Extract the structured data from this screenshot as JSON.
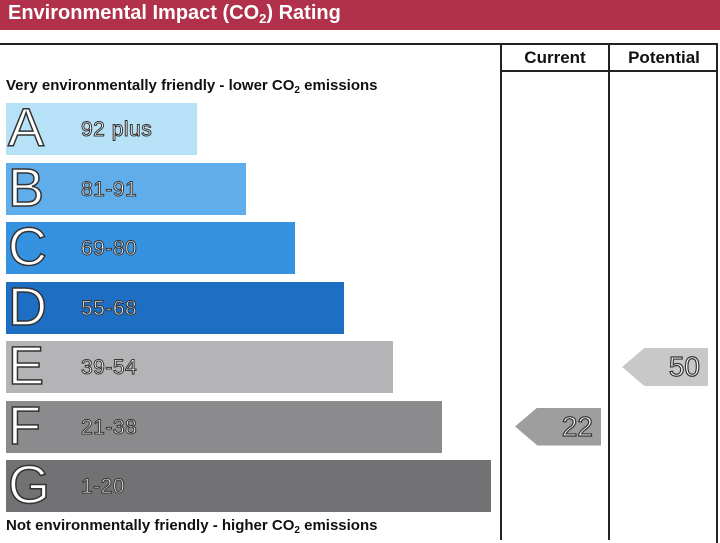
{
  "title_parts": [
    "Environmental Impact (CO",
    "2",
    ") Rating"
  ],
  "columns": {
    "current": "Current",
    "potential": "Potential"
  },
  "top_caption": [
    "Very environmentally friendly - lower CO",
    "2",
    " emissions"
  ],
  "bottom_caption": [
    "Not environmentally friendly - higher CO",
    "2",
    " emissions"
  ],
  "bands": [
    {
      "letter": "A",
      "range": "92 plus",
      "color": "#b7e1f7"
    },
    {
      "letter": "B",
      "range": "81-91",
      "color": "#5fadeb"
    },
    {
      "letter": "C",
      "range": "69-80",
      "color": "#3592e1"
    },
    {
      "letter": "D",
      "range": "55-68",
      "color": "#1e6fc4"
    },
    {
      "letter": "E",
      "range": "39-54",
      "color": "#b4b4b6"
    },
    {
      "letter": "F",
      "range": "21-38",
      "color": "#8b8b8d"
    },
    {
      "letter": "G",
      "range": "1-20",
      "color": "#727274"
    }
  ],
  "ratings": {
    "current": {
      "value": "22",
      "band": "F",
      "color": "#9e9e9e"
    },
    "potential": {
      "value": "50",
      "band": "E",
      "color": "#c8c8c8"
    }
  },
  "colors": {
    "header_bg": "#b1304a",
    "header_text": "#ffffff"
  }
}
